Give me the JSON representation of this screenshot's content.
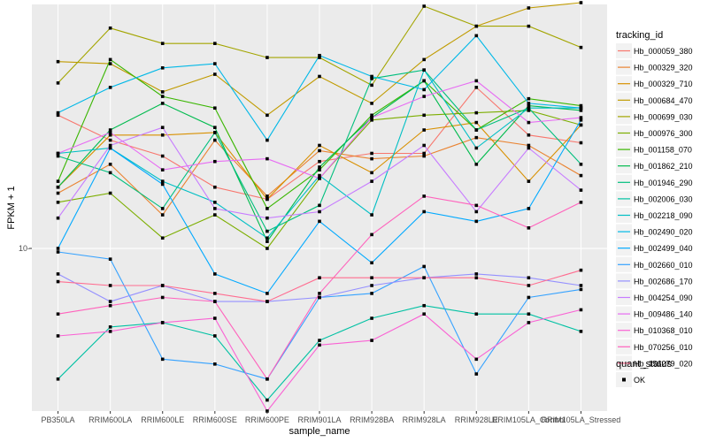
{
  "chart_data": {
    "type": "line",
    "xlabel": "sample_name",
    "ylabel": "FPKM + 1",
    "y_scale": "log10",
    "y_tick_values": [
      10
    ],
    "y_tick_labels": [
      "10-"
    ],
    "ylim": [
      6.3,
      20
    ],
    "grid": true,
    "legend_position": "right",
    "categories": [
      "PB350LA",
      "RRIM600LA",
      "RRIM600LE",
      "RRIM600SE",
      "RRIM600PE",
      "RRIM901LA",
      "RRIM928BA",
      "RRIM928LA",
      "RRIM928LE",
      "RRIM105LA_Control",
      "RRIM105LA_Stressed"
    ],
    "category_labels": [
      "PB350LA",
      "RRIM600LA",
      "RRIM600LE",
      "RRIM600SE",
      "RRIM600PE",
      "RRIM901LA",
      "RRIM928BA",
      "RRIM928LA",
      "RRIM928LE",
      "RRIM105LA_Control",
      "RRIM105LA_Stressed"
    ],
    "legend_title": "tracking_id",
    "shape_legend_title": "quant_status",
    "shape_legend_label": "OK",
    "series": [
      {
        "name": "Hb_000059_380",
        "color": "#F8766D",
        "values": [
          14.6,
          13.6,
          13.0,
          11.9,
          11.5,
          12.8,
          13.1,
          13.1,
          15.8,
          13.8,
          13.5
        ]
      },
      {
        "name": "Hb_000329_320",
        "color": "#EA8331",
        "values": [
          11.7,
          12.7,
          11.0,
          13.6,
          11.6,
          13.2,
          12.9,
          13.0,
          13.7,
          13.4,
          12.3
        ]
      },
      {
        "name": "Hb_000329_710",
        "color": "#D89000",
        "values": [
          11.9,
          13.8,
          13.8,
          13.9,
          11.5,
          13.4,
          12.4,
          14.0,
          14.3,
          12.1,
          14.2
        ]
      },
      {
        "name": "Hb_000684_470",
        "color": "#C09B00",
        "values": [
          17.0,
          16.9,
          15.6,
          16.4,
          14.6,
          16.3,
          15.1,
          17.1,
          18.8,
          19.8,
          20.1
        ]
      },
      {
        "name": "Hb_000699_030",
        "color": "#A3A500",
        "values": [
          16.0,
          18.7,
          17.9,
          17.9,
          17.2,
          17.2,
          15.9,
          19.9,
          18.8,
          18.8,
          17.7
        ]
      },
      {
        "name": "Hb_000976_300",
        "color": "#7CAE00",
        "values": [
          11.4,
          11.7,
          10.3,
          11.0,
          10.0,
          12.2,
          14.4,
          14.6,
          14.7,
          14.8,
          14.2
        ]
      },
      {
        "name": "Hb_001158_070",
        "color": "#39B600",
        "values": [
          12.1,
          17.1,
          15.4,
          14.9,
          11.2,
          12.5,
          14.6,
          16.1,
          14.0,
          15.3,
          15.0
        ]
      },
      {
        "name": "Hb_001862_210",
        "color": "#00BB4E",
        "values": [
          11.9,
          14.0,
          15.1,
          14.1,
          10.2,
          12.6,
          14.5,
          16.1,
          12.7,
          15.0,
          14.8
        ]
      },
      {
        "name": "Hb_001946_290",
        "color": "#00BF7D",
        "values": [
          13.0,
          12.4,
          11.2,
          13.9,
          10.5,
          11.3,
          16.2,
          16.6,
          14.0,
          14.9,
          12.7
        ]
      },
      {
        "name": "Hb_002006_030",
        "color": "#00C1A3",
        "values": [
          6.9,
          8.0,
          8.1,
          7.8,
          6.5,
          7.7,
          8.2,
          8.5,
          8.3,
          8.3,
          7.9
        ]
      },
      {
        "name": "Hb_002218_090",
        "color": "#00BFC4",
        "values": [
          13.1,
          13.3,
          12.1,
          11.4,
          10.3,
          12.3,
          11.0,
          16.6,
          13.3,
          14.9,
          14.9
        ]
      },
      {
        "name": "Hb_002490_020",
        "color": "#00B8E7",
        "values": [
          14.7,
          15.8,
          16.7,
          16.9,
          13.6,
          17.3,
          16.3,
          15.7,
          18.3,
          15.1,
          14.9
        ]
      },
      {
        "name": "Hb_002499_040",
        "color": "#00A9FF",
        "values": [
          10.0,
          13.3,
          12.0,
          9.3,
          8.8,
          10.8,
          9.6,
          11.1,
          10.8,
          11.2,
          14.4
        ]
      },
      {
        "name": "Hb_002660_010",
        "color": "#35A2FF",
        "values": [
          9.9,
          9.7,
          7.3,
          7.2,
          6.9,
          8.7,
          8.8,
          9.5,
          7.0,
          8.7,
          8.9
        ]
      },
      {
        "name": "Hb_002686_170",
        "color": "#9590FF",
        "values": [
          9.3,
          8.6,
          9.0,
          8.6,
          8.6,
          8.7,
          9.0,
          9.2,
          9.3,
          9.2,
          9.0
        ]
      },
      {
        "name": "Hb_004254_090",
        "color": "#C77CFF",
        "values": [
          10.9,
          13.4,
          14.1,
          11.2,
          10.9,
          11.1,
          12.1,
          13.4,
          11.1,
          13.3,
          11.8
        ]
      },
      {
        "name": "Hb_009486_140",
        "color": "#E76BF3",
        "values": [
          13.1,
          13.9,
          12.5,
          12.8,
          12.9,
          12.2,
          14.5,
          15.4,
          16.1,
          14.3,
          14.5
        ]
      },
      {
        "name": "Hb_010368_010",
        "color": "#FA62D4",
        "values": [
          7.8,
          7.9,
          8.1,
          8.2,
          6.3,
          7.6,
          7.7,
          8.3,
          7.3,
          8.1,
          8.4
        ]
      },
      {
        "name": "Hb_070256_010",
        "color": "#FF62BC",
        "values": [
          8.3,
          8.5,
          8.7,
          8.6,
          6.9,
          8.8,
          10.4,
          11.6,
          11.3,
          10.6,
          11.4
        ]
      },
      {
        "name": "Hb_156279_020",
        "color": "#FF6C90",
        "values": [
          9.1,
          9.0,
          9.0,
          8.8,
          8.6,
          9.2,
          9.2,
          9.2,
          9.2,
          9.0,
          9.4
        ]
      }
    ]
  }
}
